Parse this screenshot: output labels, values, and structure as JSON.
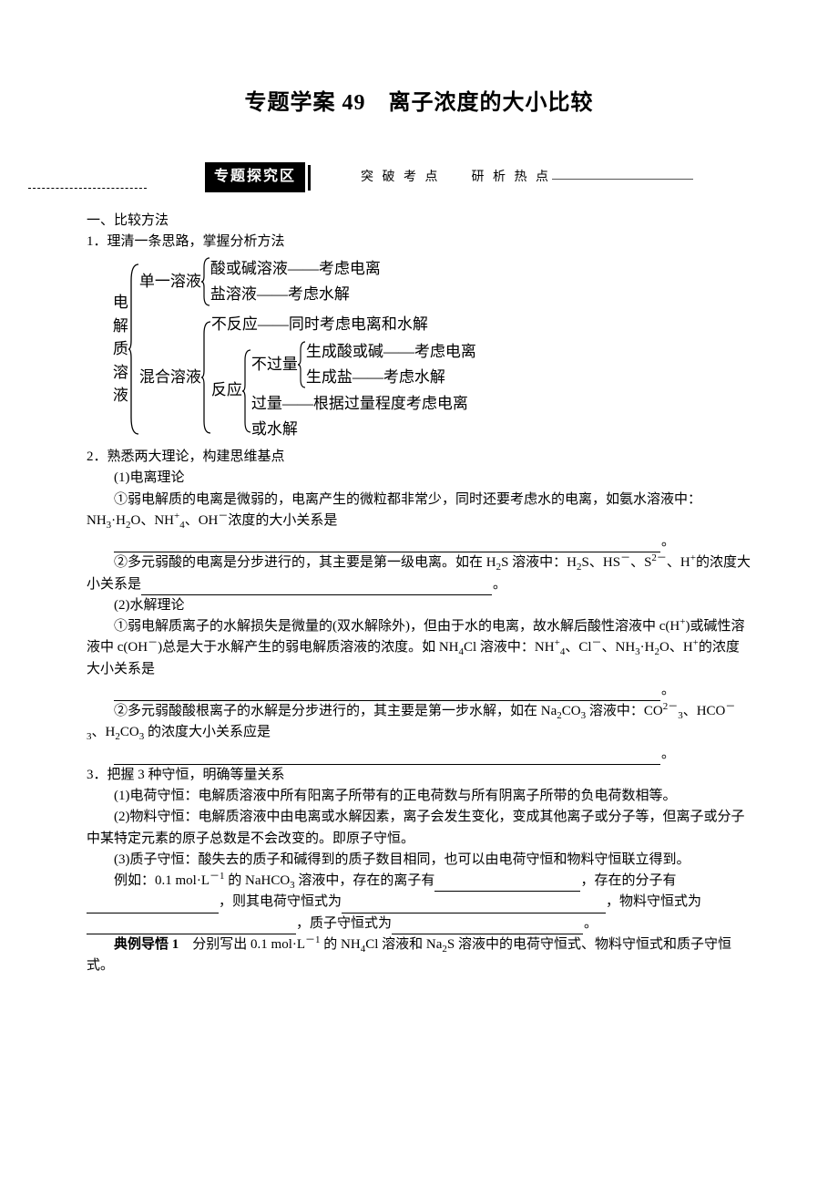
{
  "title": "专题学案 49　离子浓度的大小比较",
  "sectionHeader": {
    "label": "专题探究区",
    "sub": "突 破 考 点　　研 析 热 点"
  },
  "sec1": {
    "h1": "一、比较方法",
    "p1": "1．理清一条思路，掌握分析方法",
    "p2": "2．熟悉两大理论，构建思维基点",
    "p2a": "(1)电离理论",
    "p2b_pre": "①弱电解质的电离是微弱的，电离产生的微粒都非常少，同时还要考虑水的电离，如氨水溶液中：NH",
    "p2b_mid1": "·H",
    "p2b_mid2": "O、NH",
    "p2b_mid3": "、OH",
    "p2b_tail": "浓度的大小关系是",
    "p2c_pre": "②多元弱酸的电离是分步进行的，其主要是第一级电离。如在 H",
    "p2c_mid1": "S 溶液中：H",
    "p2c_mid2": "S、HS",
    "p2c_mid3": "、S",
    "p2c_mid4": "、H",
    "p2c_tail": "的浓度大小关系是",
    "p3": "(2)水解理论",
    "p3a_pre": "①弱电解质离子的水解损失是微量的(双水解除外)，但由于水的电离，故水解后酸性溶液中 c(H",
    "p3a_mid1": ")或碱性溶液中 c(OH",
    "p3a_mid2": ")总是大于水解产生的弱电解质溶液的浓度。如 NH",
    "p3a_mid3": "Cl 溶液中：NH",
    "p3a_mid4": "、Cl",
    "p3a_mid5": "、NH",
    "p3a_mid6": "·H",
    "p3a_mid7": "O、H",
    "p3a_tail": "的浓度大小关系是",
    "p3b_pre": "②多元弱酸酸根离子的水解是分步进行的，其主要是第一步水解，如在 Na",
    "p3b_mid1": "CO",
    "p3b_mid2": " 溶液中：CO",
    "p3b_mid3": "、HCO",
    "p3b_mid4": "、H",
    "p3b_mid5": "CO",
    "p3b_tail": " 的浓度大小关系应是",
    "p4": "3．把握 3 种守恒，明确等量关系",
    "p4a": "(1)电荷守恒：电解质溶液中所有阳离子所带有的正电荷数与所有阴离子所带的负电荷数相等。",
    "p4b": "(2)物料守恒：电解质溶液中由电离或水解因素，离子会发生变化，变成其他离子或分子等，但离子或分子中某特定元素的原子总数是不会改变的。即原子守恒。",
    "p4c": "(3)质子守恒：酸失去的质子和碱得到的质子数目相同，也可以由电荷守恒和物料守恒联立得到。",
    "p4d_pre": "例如：0.1 mol·L",
    "p4d_mid1": " 的 NaHCO",
    "p4d_mid2": " 溶液中，存在的离子有",
    "p4d_mid3": "，存在的分子有",
    "p4d_mid4": "，则其电荷守恒式为",
    "p4d_mid5": "，物料守恒式为",
    "p4d_mid6": "，质子守恒式为",
    "example_label": "典例导悟 1",
    "example_pre": "分别写出 0.1 mol·L",
    "example_mid1": " 的 NH",
    "example_mid2": "Cl 溶液和 Na",
    "example_mid3": "S 溶液中的电荷守恒式、物料守恒式和质子守恒式。"
  },
  "tree": {
    "root": "电解质溶液",
    "a": "单一溶液",
    "a1": "酸或碱溶液——考虑电离",
    "a2": "盐溶液——考虑水解",
    "b": "混合溶液",
    "b1": "不反应——同时考虑电离和水解",
    "b2": "反应",
    "b2a": "不过量",
    "b2a1": "生成酸或碱——考虑电离",
    "b2a2": "生成盐——考虑水解",
    "b2b": "过量——根据过量程度考虑电离",
    "b2c": "或水解"
  },
  "style": {
    "bg": "#ffffff",
    "text_color": "#000000",
    "base_fontsize": 15,
    "title_fontsize": 24,
    "tree_fontsize": 17
  }
}
